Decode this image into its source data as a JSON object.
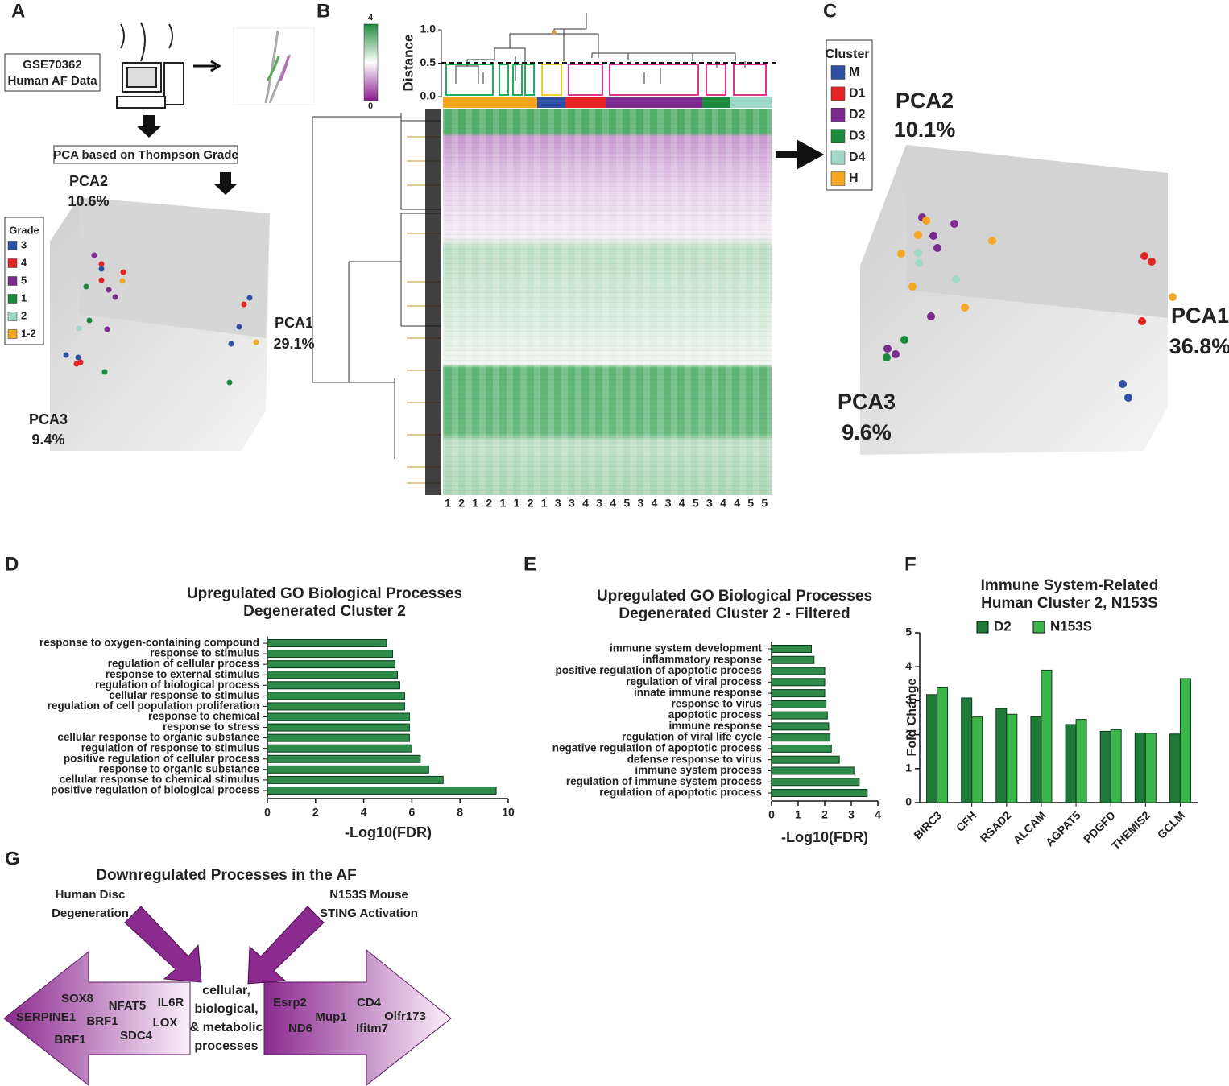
{
  "panel_labels": [
    "A",
    "B",
    "C",
    "D",
    "E",
    "F",
    "G"
  ],
  "panel_a": {
    "dataset": [
      "GSE70362",
      "Human AF Data"
    ],
    "step": "PCA based on Thompson Grade",
    "axes": [
      {
        "name": "PCA2",
        "variance": "10.6%"
      },
      {
        "name": "PCA1",
        "variance": "29.1%"
      },
      {
        "name": "PCA3",
        "variance": "9.4%"
      }
    ],
    "legend": {
      "title": "Grade",
      "items": [
        {
          "name": "3",
          "color": "#2e4fa3"
        },
        {
          "name": "4",
          "color": "#e32526"
        },
        {
          "name": "5",
          "color": "#7b2a8d"
        },
        {
          "name": "1",
          "color": "#1b8a3e"
        },
        {
          "name": "2",
          "color": "#9fd8c8"
        },
        {
          "name": "1-2",
          "color": "#f5a623"
        }
      ]
    }
  },
  "panel_b": {
    "colorbar_ticks": [
      4,
      0
    ],
    "distance_label": "Distance",
    "distance_ticks": [
      {
        "value": 1,
        "label": "1.0"
      },
      {
        "value": 0.5,
        "label": "0.5"
      },
      {
        "value": 0,
        "label": "0.0"
      }
    ],
    "columns": [
      1,
      2,
      1,
      2,
      1,
      1,
      2,
      1,
      3,
      3,
      4,
      3,
      4,
      5,
      3,
      4,
      3,
      4,
      5,
      3,
      4,
      4,
      5,
      5
    ]
  },
  "panel_c": {
    "axes": [
      {
        "name": "PCA2",
        "variance": "10.1%"
      },
      {
        "name": "PCA1",
        "variance": "36.8%"
      },
      {
        "name": "PCA3",
        "variance": "9.6%"
      }
    ],
    "legend": {
      "title": "Cluster",
      "items": [
        {
          "name": "M",
          "color": "#2e4fa3"
        },
        {
          "name": "D1",
          "color": "#e32526"
        },
        {
          "name": "D2",
          "color": "#7b2a8d"
        },
        {
          "name": "D3",
          "color": "#1b8a3e"
        },
        {
          "name": "D4",
          "color": "#9fd8c8"
        },
        {
          "name": "H",
          "color": "#f5a623"
        }
      ]
    }
  },
  "chart_data": [
    {
      "type": "bar",
      "orientation": "horizontal",
      "title": [
        "Upregulated GO Biological Processes",
        "Degenerated Cluster 2"
      ],
      "x_label": "-Log10(FDR)",
      "color": "#2e8b4a",
      "categories": [
        "response to oxygen-containing compound",
        "response to stimulus",
        "regulation of cellular process",
        "response to external stimulus",
        "regulation of biological process",
        "cellular response to stimulus",
        "regulation of cell population proliferation",
        "response to chemical",
        "response to stress",
        "cellular response to organic substance",
        "regulation of response to stimulus",
        "positive regulation of cellular process",
        "response to organic substance",
        "cellular response to chemical stimulus",
        "positive regulation of biological process"
      ],
      "values": [
        4.95,
        5.2,
        5.3,
        5.4,
        5.5,
        5.7,
        5.7,
        5.9,
        5.9,
        5.9,
        6.0,
        6.35,
        6.7,
        7.3,
        9.5
      ],
      "xlim": [
        0,
        10
      ],
      "xticks": [
        0,
        2,
        4,
        6,
        8,
        10
      ]
    },
    {
      "type": "bar",
      "orientation": "horizontal",
      "title": [
        "Upregulated GO Biological Processes",
        "Degenerated Cluster 2 - Filtered"
      ],
      "x_label": "-Log10(FDR)",
      "color": "#2e8b4a",
      "categories": [
        "immune system development",
        "inflammatory response",
        "positive regulation of apoptotic process",
        "regulation of viral process",
        "innate immune response",
        "response to virus",
        "apoptotic process",
        "immune response",
        "regulation of viral life cycle",
        "negative regulation of apoptotic process",
        "defense response to virus",
        "immune system process",
        "regulation of immune system process",
        "regulation of apoptotic process"
      ],
      "values": [
        1.5,
        1.6,
        2.0,
        2.0,
        2.0,
        2.05,
        2.1,
        2.15,
        2.2,
        2.25,
        2.55,
        3.1,
        3.3,
        3.6
      ],
      "xlim": [
        0,
        4
      ],
      "xticks": [
        0,
        1,
        2,
        3,
        4
      ]
    },
    {
      "type": "bar",
      "orientation": "vertical",
      "title": [
        "Immune System-Related",
        "Human Cluster 2, N153S"
      ],
      "y_label": "Fold Change",
      "categories": [
        "BIRC3",
        "CFH",
        "RSAD2",
        "ALCAM",
        "AGPAT5",
        "PDGFD",
        "THEMIS2",
        "GCLM"
      ],
      "series": [
        {
          "name": "D2",
          "color": "#1f7a3a",
          "values": [
            3.18,
            3.08,
            2.77,
            2.53,
            2.3,
            2.1,
            2.05,
            2.02
          ]
        },
        {
          "name": "N153S",
          "color": "#3cb54a",
          "values": [
            3.4,
            2.52,
            2.6,
            3.9,
            2.45,
            2.15,
            2.04,
            3.65
          ]
        }
      ],
      "ylim": [
        0,
        5
      ],
      "yticks": [
        0,
        1,
        2,
        3,
        4,
        5
      ]
    }
  ],
  "panel_g": {
    "title": "Downregulated Processes in the AF",
    "source_left": [
      "Human Disc",
      "Degeneration"
    ],
    "source_right": [
      "N153S Mouse",
      "STING Activation"
    ],
    "center": [
      "cellular,",
      "biological,",
      "& metabolic",
      "processes"
    ],
    "left_genes": [
      "SOX8",
      "NFAT5",
      "IL6R",
      "SERPINE1",
      "BRF1",
      "LOX",
      "SDC4",
      "BRF1"
    ],
    "right_genes": [
      "Esrp2",
      "CD4",
      "Olfr173",
      "ND6",
      "Mup1",
      "Ifitm7"
    ]
  }
}
